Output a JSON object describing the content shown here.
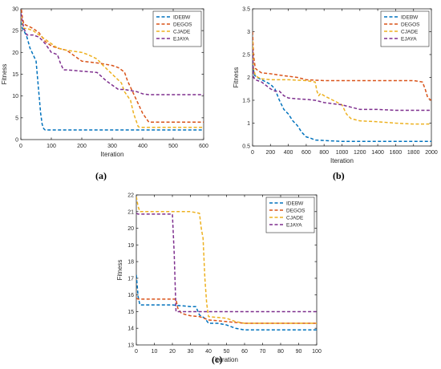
{
  "panels": [
    {
      "label": "(a)"
    },
    {
      "label": "(b)"
    },
    {
      "label": "(c)"
    }
  ],
  "chart_data": [
    {
      "type": "line",
      "panel": "(a)",
      "xlabel": "Iteration",
      "ylabel": "Fitness",
      "xlim": [
        0,
        600
      ],
      "ylim": [
        0,
        30
      ],
      "xticks": [
        0,
        100,
        200,
        300,
        400,
        500,
        600
      ],
      "yticks": [
        0,
        5,
        10,
        15,
        20,
        25,
        30
      ],
      "grid": false,
      "legend_position": "top-right",
      "series": [
        {
          "name": "IDEBW",
          "color": "#0072BD",
          "x": [
            0,
            5,
            10,
            20,
            30,
            40,
            50,
            55,
            60,
            65,
            70,
            75,
            80,
            85,
            100,
            200,
            300,
            400,
            500,
            600
          ],
          "y": [
            27,
            25.5,
            25,
            23.5,
            21,
            19.5,
            18,
            14,
            10,
            6,
            3.5,
            2.5,
            2.2,
            2.2,
            2.2,
            2.2,
            2.2,
            2.2,
            2.2,
            2.2
          ]
        },
        {
          "name": "DEGOS",
          "color": "#D95319",
          "x": [
            0,
            5,
            10,
            40,
            60,
            80,
            100,
            120,
            150,
            200,
            260,
            300,
            320,
            340,
            350,
            360,
            380,
            400,
            410,
            420,
            600
          ],
          "y": [
            31,
            28,
            26.5,
            25.5,
            24.5,
            22.5,
            21.5,
            21,
            20.5,
            18,
            17.5,
            17,
            16.5,
            15.5,
            13.5,
            12,
            9,
            6,
            5,
            4,
            4
          ]
        },
        {
          "name": "CJADE",
          "color": "#EDB120",
          "x": [
            0,
            5,
            10,
            20,
            40,
            80,
            120,
            150,
            200,
            220,
            250,
            270,
            300,
            330,
            340,
            350,
            360,
            370,
            375,
            380,
            385,
            390,
            600
          ],
          "y": [
            28,
            26.5,
            25.5,
            25.5,
            25,
            23,
            21,
            20.5,
            20,
            19.5,
            18.5,
            17,
            15,
            13,
            11,
            10,
            9,
            6,
            5,
            4,
            3,
            2.8,
            2.8
          ]
        },
        {
          "name": "EJAYA",
          "color": "#7E2F8E",
          "x": [
            0,
            5,
            10,
            20,
            40,
            60,
            80,
            100,
            120,
            130,
            140,
            150,
            200,
            250,
            280,
            300,
            320,
            340,
            380,
            400,
            420,
            600
          ],
          "y": [
            29,
            27,
            25.5,
            24,
            24,
            23.5,
            22,
            20,
            19.5,
            17.5,
            16,
            16,
            15.7,
            15.4,
            13.5,
            12.5,
            11.5,
            11.5,
            11,
            10.5,
            10.3,
            10.3
          ]
        }
      ]
    },
    {
      "type": "line",
      "panel": "(b)",
      "xlabel": "Iteration",
      "ylabel": "Fitness",
      "xlim": [
        0,
        2000
      ],
      "ylim": [
        0.5,
        3.5
      ],
      "xticks": [
        0,
        200,
        400,
        600,
        800,
        1000,
        1200,
        1400,
        1600,
        1800,
        2000
      ],
      "yticks": [
        0.5,
        1,
        1.5,
        2,
        2.5,
        3,
        3.5
      ],
      "grid": false,
      "legend_position": "top-right",
      "series": [
        {
          "name": "IDEBW",
          "color": "#0072BD",
          "x": [
            0,
            20,
            50,
            100,
            150,
            200,
            250,
            300,
            350,
            400,
            450,
            500,
            550,
            600,
            650,
            700,
            1000,
            1500,
            2000
          ],
          "y": [
            2.3,
            2.05,
            2.0,
            1.95,
            1.9,
            1.85,
            1.75,
            1.5,
            1.3,
            1.2,
            1.05,
            0.95,
            0.8,
            0.7,
            0.67,
            0.63,
            0.6,
            0.6,
            0.6
          ]
        },
        {
          "name": "DEGOS",
          "color": "#D95319",
          "x": [
            0,
            10,
            30,
            60,
            100,
            200,
            300,
            500,
            600,
            800,
            1000,
            1500,
            1800,
            1900,
            1930,
            1960,
            2000
          ],
          "y": [
            3.0,
            2.5,
            2.2,
            2.15,
            2.1,
            2.08,
            2.05,
            2.0,
            1.95,
            1.93,
            1.93,
            1.93,
            1.93,
            1.9,
            1.75,
            1.55,
            1.5
          ]
        },
        {
          "name": "CJADE",
          "color": "#EDB120",
          "x": [
            0,
            10,
            30,
            60,
            100,
            200,
            400,
            600,
            700,
            720,
            740,
            760,
            800,
            900,
            1000,
            1050,
            1100,
            1200,
            1400,
            1600,
            1800,
            2000
          ],
          "y": [
            2.8,
            2.2,
            2.05,
            2.0,
            1.97,
            1.95,
            1.95,
            1.93,
            1.9,
            1.7,
            1.6,
            1.65,
            1.6,
            1.5,
            1.4,
            1.2,
            1.1,
            1.05,
            1.03,
            1.0,
            0.98,
            0.98
          ]
        },
        {
          "name": "EJAYA",
          "color": "#7E2F8E",
          "x": [
            0,
            10,
            30,
            100,
            200,
            250,
            300,
            350,
            400,
            500,
            600,
            700,
            800,
            1000,
            1100,
            1200,
            1400,
            1600,
            2000
          ],
          "y": [
            2.6,
            2.0,
            1.95,
            1.9,
            1.75,
            1.7,
            1.7,
            1.6,
            1.55,
            1.53,
            1.52,
            1.5,
            1.45,
            1.4,
            1.35,
            1.3,
            1.3,
            1.28,
            1.28
          ]
        }
      ]
    },
    {
      "type": "line",
      "panel": "(c)",
      "xlabel": "Iteration",
      "ylabel": "Fitness",
      "xlim": [
        0,
        100
      ],
      "ylim": [
        13,
        22
      ],
      "xticks": [
        0,
        10,
        20,
        30,
        40,
        50,
        60,
        70,
        80,
        90,
        100
      ],
      "yticks": [
        13,
        14,
        15,
        16,
        17,
        18,
        19,
        20,
        21,
        22
      ],
      "grid": false,
      "legend_position": "top-right",
      "series": [
        {
          "name": "IDEBW",
          "color": "#0072BD",
          "x": [
            0,
            1,
            2,
            10,
            20,
            30,
            33,
            35,
            38,
            40,
            45,
            50,
            55,
            60,
            100
          ],
          "y": [
            17.2,
            15.9,
            15.4,
            15.4,
            15.4,
            15.3,
            15.3,
            14.8,
            14.6,
            14.3,
            14.3,
            14.2,
            14.0,
            13.9,
            13.9
          ]
        },
        {
          "name": "DEGOS",
          "color": "#D95319",
          "x": [
            0,
            1,
            2,
            10,
            20,
            22,
            23,
            25,
            28,
            30,
            35,
            40,
            50,
            55,
            60,
            100
          ],
          "y": [
            15.8,
            15.75,
            15.75,
            15.75,
            15.75,
            15.75,
            15.2,
            14.9,
            14.8,
            14.75,
            14.7,
            14.5,
            14.4,
            14.35,
            14.3,
            14.3
          ]
        },
        {
          "name": "CJADE",
          "color": "#EDB120",
          "x": [
            0,
            1,
            2,
            5,
            10,
            20,
            30,
            35,
            36,
            37,
            38,
            39,
            40,
            50,
            55,
            60,
            100
          ],
          "y": [
            21.9,
            21.3,
            21.0,
            21.0,
            21.0,
            21.0,
            21.0,
            20.9,
            20.0,
            19.4,
            17.0,
            15.5,
            14.7,
            14.6,
            14.4,
            14.3,
            14.3
          ]
        },
        {
          "name": "EJAYA",
          "color": "#7E2F8E",
          "x": [
            0,
            1,
            20,
            21,
            22,
            25,
            30,
            50,
            100
          ],
          "y": [
            20.9,
            20.85,
            20.85,
            18.5,
            15.0,
            15.0,
            15.0,
            15.0,
            15.0
          ]
        }
      ]
    }
  ]
}
